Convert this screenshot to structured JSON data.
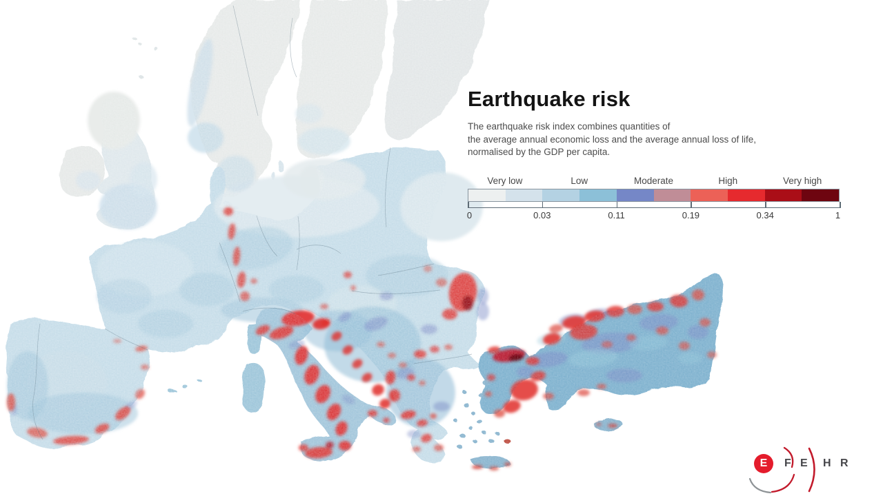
{
  "title": "Earthquake risk",
  "description": "The earthquake risk index combines quantities of\nthe average annual economic loss and the average annual loss of life,\nnormalised by the GDP per capita.",
  "legend": {
    "labels": [
      "Very low",
      "Low",
      "Moderate",
      "High",
      "Very high"
    ],
    "tick_values": [
      "0",
      "0.03",
      "0.11",
      "0.19",
      "0.34",
      "1"
    ],
    "segment_colors": [
      "#edf0f0",
      "#d4e2eb",
      "#b4d2e3",
      "#8cc0d8",
      "#7587c7",
      "#c08d97",
      "#ec6157",
      "#e62a2e",
      "#aa0e17",
      "#6e0510"
    ]
  },
  "logo": {
    "name": "EFEHR",
    "circle_letter": "E",
    "letters": [
      "F",
      "E",
      "H",
      "R"
    ],
    "accent_color": "#c21a2b",
    "text_color": "#46464a"
  },
  "map": {
    "name": "Europe earthquake risk map",
    "sea_color": "#ffffff",
    "very_low_color": "#e7eae9",
    "low_color": "#c6dde9",
    "moderate_color": "#7b8ac6",
    "high_color": "#e02f2c",
    "very_high_color": "#6e0510"
  }
}
